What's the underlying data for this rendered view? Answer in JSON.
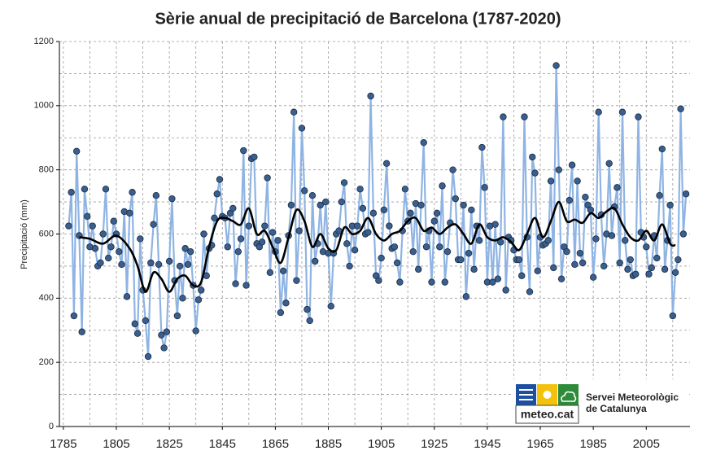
{
  "chart_data": {
    "type": "line",
    "title": "Sèrie anual de precipitació de Barcelona (1787-2020)",
    "y_label": "Precipitació (mm)",
    "xlim": [
      1783.5,
      2021.5
    ],
    "ylim": [
      0,
      1200
    ],
    "xticks": [
      1785,
      1805,
      1825,
      1845,
      1865,
      1885,
      1905,
      1925,
      1945,
      1965,
      1985,
      2005
    ],
    "xgrid": [
      1795,
      1815,
      1835,
      1855,
      1875,
      1895,
      1915,
      1935,
      1955,
      1975,
      1995,
      2015
    ],
    "yticks": [
      0,
      200,
      400,
      600,
      800,
      1000,
      1200
    ],
    "ygrid": [
      100,
      300,
      500,
      700,
      900,
      1100
    ],
    "grid": true,
    "x": [
      1787,
      1788,
      1789,
      1790,
      1791,
      1792,
      1793,
      1794,
      1795,
      1796,
      1797,
      1798,
      1799,
      1800,
      1801,
      1802,
      1803,
      1804,
      1805,
      1806,
      1807,
      1808,
      1809,
      1810,
      1811,
      1812,
      1813,
      1814,
      1815,
      1816,
      1817,
      1818,
      1819,
      1820,
      1821,
      1822,
      1823,
      1824,
      1825,
      1826,
      1827,
      1828,
      1829,
      1830,
      1831,
      1832,
      1833,
      1834,
      1835,
      1836,
      1837,
      1838,
      1839,
      1840,
      1841,
      1842,
      1843,
      1844,
      1845,
      1846,
      1847,
      1848,
      1849,
      1850,
      1851,
      1852,
      1853,
      1854,
      1855,
      1856,
      1857,
      1858,
      1859,
      1860,
      1861,
      1862,
      1863,
      1864,
      1865,
      1866,
      1867,
      1868,
      1869,
      1870,
      1871,
      1872,
      1873,
      1874,
      1875,
      1876,
      1877,
      1878,
      1879,
      1880,
      1881,
      1882,
      1883,
      1884,
      1885,
      1886,
      1887,
      1888,
      1889,
      1890,
      1891,
      1892,
      1893,
      1894,
      1895,
      1896,
      1897,
      1898,
      1899,
      1900,
      1901,
      1902,
      1903,
      1904,
      1905,
      1906,
      1907,
      1908,
      1909,
      1910,
      1911,
      1912,
      1913,
      1914,
      1915,
      1916,
      1917,
      1918,
      1919,
      1920,
      1921,
      1922,
      1923,
      1924,
      1925,
      1926,
      1927,
      1928,
      1929,
      1930,
      1931,
      1932,
      1933,
      1934,
      1935,
      1936,
      1937,
      1938,
      1939,
      1940,
      1941,
      1942,
      1943,
      1944,
      1945,
      1946,
      1947,
      1948,
      1949,
      1950,
      1951,
      1952,
      1953,
      1954,
      1955,
      1956,
      1957,
      1958,
      1959,
      1960,
      1961,
      1962,
      1963,
      1964,
      1965,
      1966,
      1967,
      1968,
      1969,
      1970,
      1971,
      1972,
      1973,
      1974,
      1975,
      1976,
      1977,
      1978,
      1979,
      1980,
      1981,
      1982,
      1983,
      1984,
      1985,
      1986,
      1987,
      1988,
      1989,
      1990,
      1991,
      1992,
      1993,
      1994,
      1995,
      1996,
      1997,
      1998,
      1999,
      2000,
      2001,
      2002,
      2003,
      2004,
      2005,
      2006,
      2007,
      2008,
      2009,
      2010,
      2011,
      2012,
      2013,
      2014,
      2015,
      2016,
      2017,
      2018,
      2019,
      2020
    ],
    "series": [
      {
        "color": "#8fb4e3",
        "marker_color": "#3a5f8f",
        "values": [
          625,
          730,
          345,
          858,
          595,
          295,
          740,
          655,
          560,
          625,
          555,
          500,
          510,
          600,
          740,
          525,
          560,
          640,
          600,
          545,
          505,
          670,
          405,
          665,
          730,
          320,
          290,
          585,
          425,
          330,
          218,
          510,
          630,
          720,
          505,
          285,
          245,
          295,
          515,
          710,
          455,
          345,
          500,
          400,
          555,
          505,
          545,
          440,
          298,
          395,
          425,
          600,
          470,
          555,
          565,
          650,
          725,
          770,
          655,
          650,
          560,
          665,
          680,
          445,
          545,
          585,
          860,
          440,
          625,
          835,
          840,
          570,
          560,
          575,
          625,
          775,
          480,
          605,
          545,
          580,
          355,
          485,
          385,
          595,
          690,
          980,
          455,
          610,
          930,
          735,
          365,
          330,
          720,
          515,
          570,
          690,
          545,
          700,
          540,
          375,
          540,
          600,
          610,
          700,
          760,
          570,
          500,
          625,
          550,
          625,
          740,
          680,
          600,
          605,
          1030,
          665,
          470,
          455,
          525,
          675,
          820,
          625,
          555,
          560,
          510,
          450,
          610,
          740,
          640,
          665,
          545,
          695,
          490,
          690,
          885,
          560,
          610,
          450,
          640,
          665,
          560,
          750,
          450,
          545,
          635,
          800,
          710,
          520,
          520,
          690,
          405,
          540,
          675,
          490,
          625,
          580,
          870,
          745,
          450,
          625,
          450,
          630,
          460,
          575,
          965,
          425,
          590,
          580,
          550,
          520,
          520,
          470,
          965,
          590,
          420,
          840,
          790,
          485,
          590,
          565,
          570,
          580,
          765,
          495,
          1125,
          800,
          460,
          560,
          545,
          705,
          815,
          505,
          765,
          540,
          510,
          715,
          690,
          675,
          465,
          585,
          980,
          660,
          500,
          600,
          820,
          595,
          685,
          745,
          510,
          980,
          580,
          490,
          520,
          470,
          475,
          965,
          605,
          590,
          560,
          475,
          495,
          595,
          525,
          720,
          865,
          490,
          580,
          690,
          345,
          480,
          520,
          990,
          600,
          725
        ]
      },
      {
        "color": "#000000",
        "x": [
          1791,
          1795,
          1800,
          1805,
          1810,
          1813,
          1816,
          1819,
          1822,
          1825,
          1828,
          1831,
          1834,
          1837,
          1840,
          1843,
          1846,
          1849,
          1852,
          1855,
          1858,
          1861,
          1864,
          1867,
          1870,
          1873,
          1876,
          1879,
          1882,
          1885,
          1888,
          1891,
          1894,
          1897,
          1900,
          1903,
          1906,
          1909,
          1912,
          1915,
          1918,
          1921,
          1924,
          1927,
          1930,
          1933,
          1936,
          1939,
          1942,
          1945,
          1948,
          1951,
          1954,
          1957,
          1960,
          1963,
          1966,
          1969,
          1972,
          1975,
          1978,
          1981,
          1984,
          1987,
          1990,
          1993,
          1996,
          1999,
          2002,
          2005,
          2008,
          2011,
          2014,
          2016
        ],
        "values": [
          590,
          585,
          570,
          595,
          555,
          500,
          420,
          480,
          460,
          420,
          460,
          470,
          440,
          450,
          560,
          640,
          650,
          640,
          630,
          680,
          600,
          610,
          560,
          510,
          590,
          675,
          640,
          560,
          600,
          555,
          550,
          620,
          600,
          610,
          650,
          600,
          580,
          600,
          610,
          640,
          650,
          610,
          620,
          600,
          620,
          630,
          600,
          570,
          630,
          590,
          580,
          590,
          575,
          550,
          600,
          650,
          590,
          640,
          700,
          640,
          645,
          635,
          665,
          650,
          670,
          680,
          630,
          590,
          580,
          610,
          580,
          630,
          570,
          565
        ]
      }
    ]
  },
  "logo": {
    "brand": "meteo.cat",
    "org_line1": "Servei Meteorològic",
    "org_line2": "de Catalunya"
  }
}
